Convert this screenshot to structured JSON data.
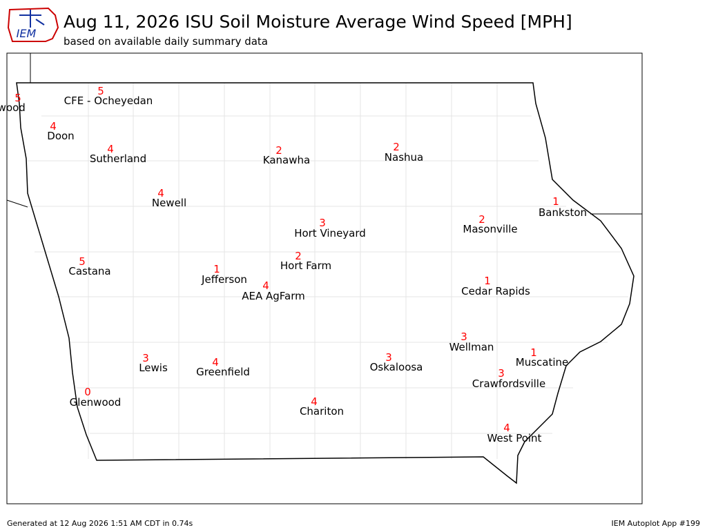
{
  "header": {
    "logo_text": "IEM",
    "title": "Aug 11, 2026 ISU Soil Moisture Average Wind Speed [MPH]",
    "subtitle": "based on available daily summary data"
  },
  "stations": [
    {
      "name": "nwood",
      "value": 5
    },
    {
      "name": "CFE - Ocheyedan",
      "value": 5
    },
    {
      "name": "Doon",
      "value": 4
    },
    {
      "name": "Sutherland",
      "value": 4
    },
    {
      "name": "Kanawha",
      "value": 2
    },
    {
      "name": "Nashua",
      "value": 2
    },
    {
      "name": "Newell",
      "value": 4
    },
    {
      "name": "Bankston",
      "value": 1
    },
    {
      "name": "Hort Vineyard",
      "value": 3
    },
    {
      "name": "Masonville",
      "value": 2
    },
    {
      "name": "Castana",
      "value": 5
    },
    {
      "name": "Hort Farm",
      "value": 2
    },
    {
      "name": "Jefferson",
      "value": 1
    },
    {
      "name": "AEA AgFarm",
      "value": 4
    },
    {
      "name": "Cedar Rapids",
      "value": 1
    },
    {
      "name": "Wellman",
      "value": 3
    },
    {
      "name": "Muscatine",
      "value": 1
    },
    {
      "name": "Lewis",
      "value": 3
    },
    {
      "name": "Greenfield",
      "value": 4
    },
    {
      "name": "Oskaloosa",
      "value": 3
    },
    {
      "name": "Crawfordsville",
      "value": 3
    },
    {
      "name": "Glenwood",
      "value": 0
    },
    {
      "name": "Chariton",
      "value": 4
    },
    {
      "name": "West Point",
      "value": 4
    }
  ],
  "footer": {
    "left": "Generated at 12 Aug 2026 1:51 AM CDT in 0.74s",
    "right": "IEM Autoplot App #199"
  }
}
